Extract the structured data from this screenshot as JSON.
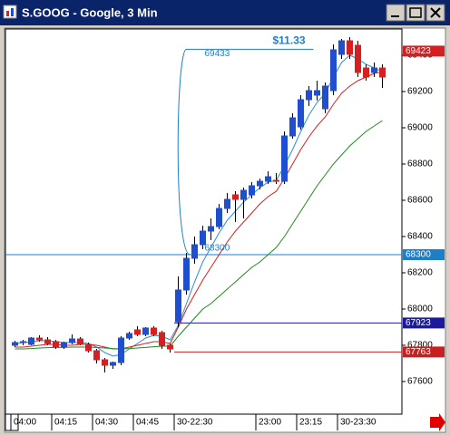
{
  "chart_data": {
    "type": "candlestick",
    "title": "S.GOOG - Google, 3 Min",
    "categories": [
      "04:00",
      null,
      null,
      null,
      null,
      "04:15",
      null,
      null,
      null,
      null,
      "04:30",
      null,
      null,
      null,
      null,
      "04:45",
      null,
      null,
      null,
      null,
      "30-22:30",
      null,
      null,
      null,
      null,
      null,
      null,
      null,
      null,
      null,
      "23:00",
      null,
      null,
      null,
      null,
      "23:15",
      null,
      null,
      null,
      null,
      "30-23:30",
      null,
      null,
      null,
      null,
      null
    ],
    "open": [
      67800,
      67815,
      67805,
      67840,
      67830,
      67820,
      67790,
      67815,
      67835,
      67805,
      67770,
      67720,
      67690,
      67705,
      67840,
      67885,
      67860,
      67895,
      67870,
      67800,
      67930,
      68105,
      68280,
      68355,
      68430,
      68455,
      68555,
      68630,
      68605,
      68630,
      68680,
      68705,
      68710,
      68705,
      68955,
      69005,
      69155,
      69180,
      69105,
      69205,
      69405,
      69480,
      69455,
      69330,
      69305,
      69330
    ],
    "high": [
      67825,
      67830,
      67845,
      67855,
      67845,
      67830,
      67820,
      67860,
      67845,
      67815,
      67780,
      67730,
      67710,
      67850,
      67875,
      67905,
      67900,
      67905,
      67880,
      67810,
      68180,
      68310,
      68400,
      68460,
      68500,
      68580,
      68640,
      68650,
      68670,
      68700,
      68720,
      68760,
      68750,
      68980,
      69080,
      69180,
      69230,
      69260,
      69250,
      69460,
      69490,
      69500,
      69480,
      69350,
      69360,
      69350
    ],
    "low": [
      67790,
      67800,
      67800,
      67820,
      67800,
      67780,
      67780,
      67805,
      67800,
      67760,
      67700,
      67650,
      67670,
      67690,
      67830,
      67850,
      67850,
      67850,
      67780,
      67760,
      67900,
      68080,
      68250,
      68330,
      68380,
      68440,
      68530,
      68480,
      68500,
      68610,
      68660,
      68690,
      68690,
      68690,
      68940,
      68990,
      69120,
      69150,
      69080,
      69180,
      69380,
      69380,
      69280,
      69260,
      69280,
      69220
    ],
    "close": [
      67815,
      67820,
      67840,
      67830,
      67810,
      67790,
      67815,
      67835,
      67805,
      67770,
      67720,
      67690,
      67705,
      67840,
      67865,
      67860,
      67895,
      67860,
      67800,
      67780,
      68105,
      68280,
      68355,
      68430,
      68455,
      68555,
      68605,
      68605,
      68655,
      68680,
      68705,
      68730,
      68705,
      68955,
      69055,
      69155,
      69205,
      69205,
      69230,
      69430,
      69480,
      69405,
      69305,
      69280,
      69330,
      69280
    ],
    "up_color": "#1f4fcf",
    "down_color": "#d42020",
    "lines": [
      {
        "color": "#2a8fd0",
        "values": [
          67810,
          67815,
          67820,
          67825,
          67825,
          67820,
          67815,
          67815,
          67815,
          67810,
          67790,
          67760,
          67740,
          67750,
          67780,
          67810,
          67840,
          67855,
          67850,
          67830,
          67910,
          68030,
          68150,
          68260,
          68340,
          68420,
          68490,
          68540,
          68590,
          68630,
          68670,
          68700,
          68710,
          68790,
          68880,
          68980,
          69070,
          69140,
          69190,
          69280,
          69360,
          69400,
          69380,
          69350,
          69330,
          69310
        ]
      },
      {
        "color": "#d42020",
        "values": [
          67790,
          67790,
          67795,
          67800,
          67805,
          67805,
          67800,
          67800,
          67805,
          67805,
          67800,
          67790,
          67780,
          67780,
          67790,
          67800,
          67810,
          67820,
          67820,
          67810,
          67900,
          68000,
          68080,
          68160,
          68230,
          68300,
          68370,
          68430,
          68480,
          68530,
          68580,
          68620,
          68650,
          68720,
          68800,
          68880,
          68950,
          69010,
          69060,
          69130,
          69190,
          69230,
          69260,
          69280,
          69300,
          69310
        ]
      },
      {
        "color": "#1f8a1f",
        "values": [
          67780,
          67780,
          67782,
          67785,
          67787,
          67788,
          67788,
          67790,
          67790,
          67790,
          67788,
          67785,
          67782,
          67780,
          67782,
          67785,
          67788,
          67792,
          67795,
          67795,
          67850,
          67900,
          67950,
          68000,
          68030,
          68070,
          68110,
          68150,
          68190,
          68230,
          68260,
          68300,
          68340,
          68400,
          68470,
          68540,
          68610,
          68680,
          68740,
          68800,
          68850,
          68900,
          68940,
          68980,
          69010,
          69040
        ]
      }
    ],
    "hlines": [
      {
        "value": 68300,
        "color": "#1e7fc8"
      },
      {
        "value": 67923,
        "color": "#1a1a9a"
      },
      {
        "value": 67763,
        "color": "#c82020"
      }
    ],
    "last_price": {
      "value": 69423,
      "color": "#d42020"
    },
    "measure": {
      "high": 69433,
      "low": 68300,
      "label": "$11.33",
      "color": "#1e7fc8"
    },
    "ylim": [
      67430,
      69530
    ],
    "yticks": [
      67600,
      67800,
      68000,
      68200,
      68400,
      68600,
      68800,
      69000,
      69200,
      69400
    ]
  }
}
